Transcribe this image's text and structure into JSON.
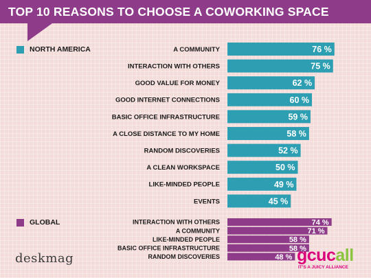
{
  "header": {
    "title": "TOP 10 REASONS TO CHOOSE A COWORKING SPACE"
  },
  "colors": {
    "north_america": "#2e9fb3",
    "global": "#8e3b8a",
    "title_bg": "#8e3b8a"
  },
  "chart_data": [
    {
      "type": "bar",
      "orientation": "horizontal",
      "series_name": "NORTH AMERICA",
      "categories": [
        "A COMMUNITY",
        "INTERACTION WITH OTHERS",
        "GOOD VALUE FOR MONEY",
        "GOOD INTERNET CONNECTIONS",
        "BASIC OFFICE INFRASTRUCTURE",
        "A CLOSE DISTANCE TO MY HOME",
        "RANDOM DISCOVERIES",
        "A CLEAN WORKSPACE",
        "LIKE-MINDED PEOPLE",
        "EVENTS"
      ],
      "values": [
        76,
        75,
        62,
        60,
        59,
        58,
        52,
        50,
        49,
        45
      ],
      "labels": [
        "76 %",
        "75 %",
        "62 %",
        "60 %",
        "59 %",
        "58 %",
        "52 %",
        "50 %",
        "49 %",
        "45 %"
      ],
      "unit": "%",
      "color": "#2e9fb3"
    },
    {
      "type": "bar",
      "orientation": "horizontal",
      "series_name": "GLOBAL",
      "categories": [
        "INTERACTION WITH OTHERS",
        "A COMMUNITY",
        "LIKE-MINDED PEOPLE",
        "BASIC OFFICE INFRASTRUCTURE",
        "RANDOM DISCOVERIES"
      ],
      "values": [
        74,
        71,
        58,
        58,
        48
      ],
      "labels": [
        "74 %",
        "71 %",
        "58 %",
        "58 %",
        "48 %"
      ],
      "unit": "%",
      "color": "#8e3b8a"
    }
  ],
  "logos": {
    "deskmag": "deskmag",
    "gcuc_main": "gcuc",
    "gcuc_all": "all",
    "gcuc_tagline": "IT'S A JUICY ALLIANCE"
  }
}
